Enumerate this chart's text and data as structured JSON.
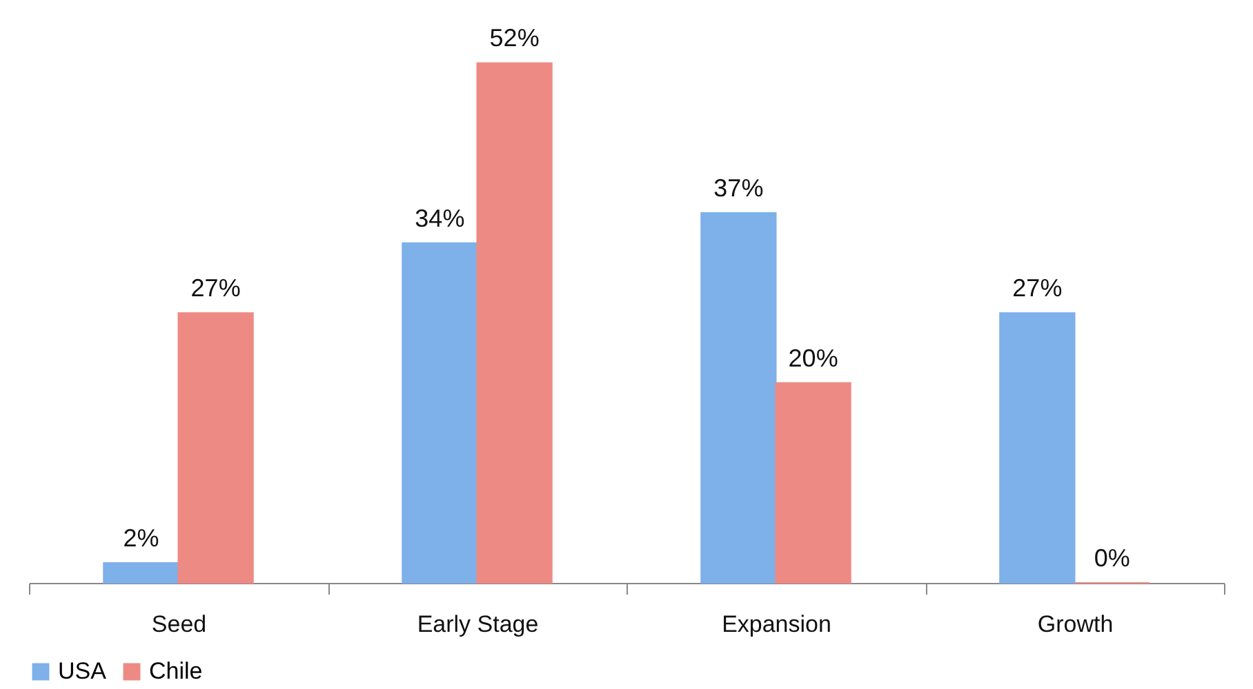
{
  "chart_data": {
    "type": "bar",
    "categories": [
      "Seed",
      "Early Stage",
      "Expansion",
      "Growth"
    ],
    "series": [
      {
        "name": "USA",
        "color": "#7eb0ea",
        "values": [
          2,
          34,
          37,
          27
        ],
        "value_labels": [
          "2%",
          "34%",
          "37%",
          "27%"
        ]
      },
      {
        "name": "Chile",
        "color": "#ee8a84",
        "values": [
          27,
          52,
          20,
          0
        ],
        "value_labels": [
          "27%",
          "52%",
          "20%",
          "0%"
        ]
      }
    ],
    "legend": "bottom",
    "grid": false
  }
}
